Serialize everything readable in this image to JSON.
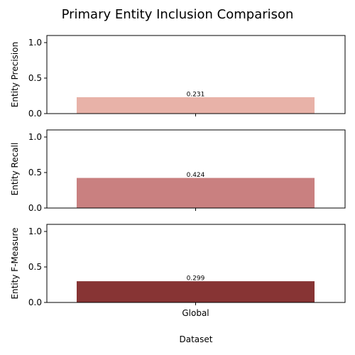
{
  "chart_data": {
    "type": "bar",
    "title": "Primary Entity Inclusion Comparison",
    "xlabel": "Dataset",
    "categories": [
      "Global"
    ],
    "ylim": [
      0,
      1.1
    ],
    "yticks": [
      0.0,
      0.5,
      1.0
    ],
    "ytick_labels": [
      "0.0",
      "0.5",
      "1.0"
    ],
    "grid": false,
    "panels": [
      {
        "ylabel": "Entity Precision",
        "value": 0.231,
        "value_label": "0.231",
        "color": "#e8b2a8"
      },
      {
        "ylabel": "Entity Recall",
        "value": 0.424,
        "value_label": "0.424",
        "color": "#c98080"
      },
      {
        "ylabel": "Entity F-Measure",
        "value": 0.299,
        "value_label": "0.299",
        "color": "#873434"
      }
    ]
  }
}
